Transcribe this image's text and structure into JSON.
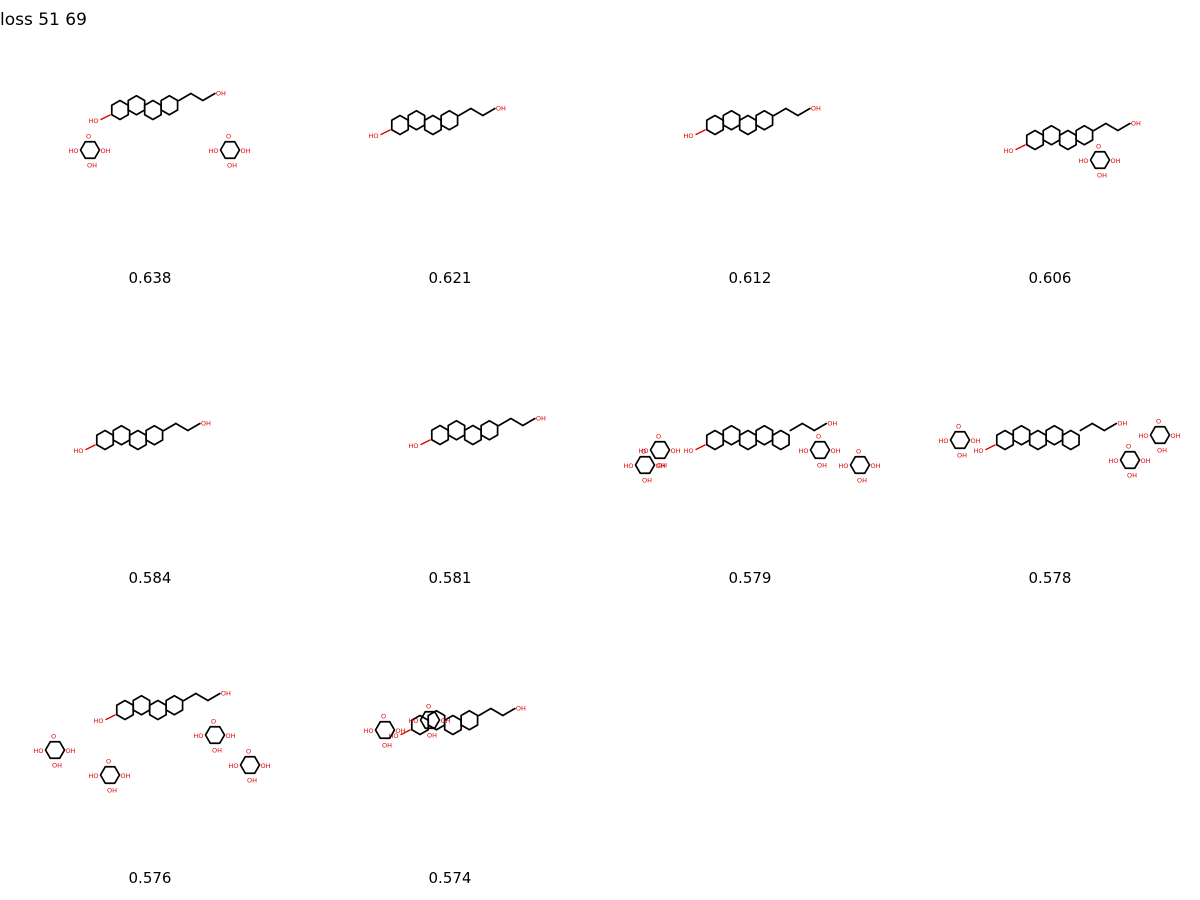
{
  "title": "loss 51 69",
  "molecules": [
    {
      "score": "0.638",
      "icon": "glycoside-molecule-icon"
    },
    {
      "score": "0.621",
      "icon": "triterpene-molecule-icon"
    },
    {
      "score": "0.612",
      "icon": "triterpene-ketone-molecule-icon"
    },
    {
      "score": "0.606",
      "icon": "glycoside-molecule-icon"
    },
    {
      "score": "0.584",
      "icon": "sterol-molecule-icon"
    },
    {
      "score": "0.581",
      "icon": "triterpene-ketone-molecule-icon"
    },
    {
      "score": "0.579",
      "icon": "saponin-molecule-icon"
    },
    {
      "score": "0.578",
      "icon": "saponin-molecule-icon"
    },
    {
      "score": "0.576",
      "icon": "saponin-molecule-icon"
    },
    {
      "score": "0.574",
      "icon": "ginsenoside-molecule-icon"
    }
  ]
}
